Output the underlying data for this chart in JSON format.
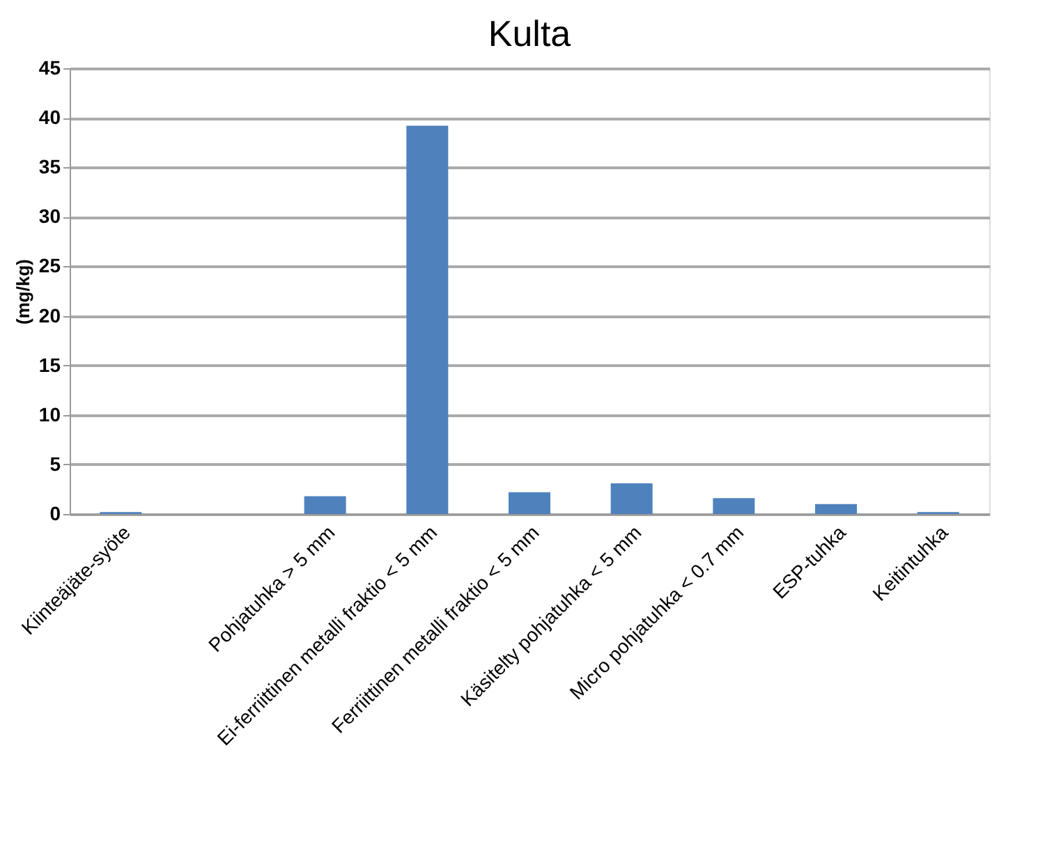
{
  "chart_data": {
    "type": "bar",
    "title": "Kulta",
    "ylabel": "(mg/kg)",
    "categories": [
      "Kiinteäjäte-syöte",
      null,
      "Pohjatuhka > 5 mm",
      "Ei-ferriittinen metalli fraktio < 5 mm",
      "Ferriittinen metalli fraktio < 5 mm",
      "Käsitelty pohjatuhka < 5 mm",
      "Micro pohjatuhka < 0.7 mm",
      "ESP-tuhka",
      "Keitintuhka"
    ],
    "values": [
      0.2,
      null,
      1.8,
      39.2,
      2.2,
      3.1,
      1.6,
      1.0,
      0.2
    ],
    "color": "#4f81bd",
    "ylim": [
      0,
      45
    ],
    "yticks": [
      0,
      5,
      10,
      15,
      20,
      25,
      30,
      35,
      40,
      45
    ],
    "grid": "y"
  }
}
